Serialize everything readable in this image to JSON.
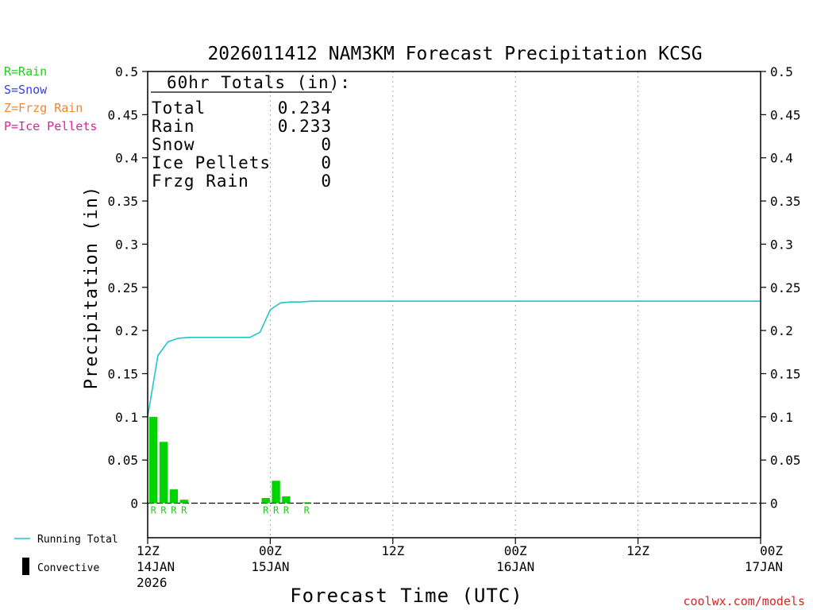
{
  "chart_data": {
    "type": "bar",
    "title": "2026011412 NAM3KM Forecast Precipitation KCSG",
    "xlabel": "Forecast Time (UTC)",
    "ylabel": "Precipitation (in)",
    "ylim": [
      -0.04,
      0.5
    ],
    "xlim_hours": [
      0,
      60
    ],
    "y_ticks": [
      "0.5",
      "0.45",
      "0.4",
      "0.35",
      "0.3",
      "0.25",
      "0.2",
      "0.15",
      "0.1",
      "0.05",
      "0"
    ],
    "y_tick_values": [
      0.5,
      0.45,
      0.4,
      0.35,
      0.3,
      0.25,
      0.2,
      0.15,
      0.1,
      0.05,
      0
    ],
    "x_ticks": [
      {
        "hour": 0,
        "line1": "12Z",
        "line2": "14JAN",
        "line3": "2026"
      },
      {
        "hour": 12,
        "line1": "00Z",
        "line2": "15JAN",
        "line3": ""
      },
      {
        "hour": 24,
        "line1": "12Z",
        "line2": "",
        "line3": ""
      },
      {
        "hour": 36,
        "line1": "00Z",
        "line2": "16JAN",
        "line3": ""
      },
      {
        "hour": 48,
        "line1": "12Z",
        "line2": "",
        "line3": ""
      },
      {
        "hour": 60,
        "line1": "00Z",
        "line2": "17JAN",
        "line3": ""
      }
    ],
    "legend_types": [
      {
        "label": "R=Rain",
        "color": "#22cc22"
      },
      {
        "label": "S=Snow",
        "color": "#3344dd"
      },
      {
        "label": "Z=Frzg Rain",
        "color": "#ee8833"
      },
      {
        "label": "P=Ice Pellets",
        "color": "#dd2299"
      }
    ],
    "legend_lines": [
      {
        "label": "Running Total",
        "color": "#22c4cc",
        "kind": "line"
      },
      {
        "label": "Convective",
        "color": "#000000",
        "kind": "bar"
      }
    ],
    "totals": {
      "header": "60hr Totals (in):",
      "rows": [
        {
          "label": "Total",
          "value": "0.234"
        },
        {
          "label": "Rain",
          "value": "0.233"
        },
        {
          "label": "Snow",
          "value": "0"
        },
        {
          "label": "Ice Pellets",
          "value": "0"
        },
        {
          "label": "Frzg Rain",
          "value": "0"
        }
      ]
    },
    "bar_color": "#00d400",
    "bars": [
      {
        "start": 0,
        "end": 1,
        "value": 0.1,
        "ptype": "R"
      },
      {
        "start": 1,
        "end": 2,
        "value": 0.071,
        "ptype": "R"
      },
      {
        "start": 2,
        "end": 3,
        "value": 0.016,
        "ptype": "R"
      },
      {
        "start": 3,
        "end": 4,
        "value": 0.004,
        "ptype": "R"
      },
      {
        "start": 11,
        "end": 12,
        "value": 0.006,
        "ptype": "R"
      },
      {
        "start": 12,
        "end": 13,
        "value": 0.026,
        "ptype": "R"
      },
      {
        "start": 13,
        "end": 14,
        "value": 0.008,
        "ptype": "R"
      },
      {
        "start": 15,
        "end": 16,
        "value": 0.001,
        "ptype": "R"
      }
    ],
    "running_total": {
      "color": "#22c4cc",
      "x": [
        0,
        1,
        2,
        3,
        4,
        5,
        10,
        11,
        12,
        13,
        14,
        15,
        16,
        20,
        30,
        40,
        50,
        60
      ],
      "y": [
        0.1,
        0.171,
        0.187,
        0.191,
        0.192,
        0.192,
        0.192,
        0.198,
        0.224,
        0.232,
        0.233,
        0.233,
        0.234,
        0.234,
        0.234,
        0.234,
        0.234,
        0.234
      ]
    },
    "grid_x": "dotted vertical at 12-hour intervals",
    "credit": "coolwx.com/models"
  }
}
